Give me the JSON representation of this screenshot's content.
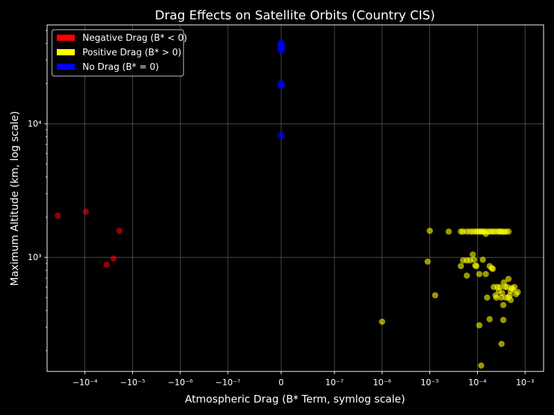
{
  "chart_data": {
    "type": "scatter",
    "title": "Drag Effects on Satellite Orbits (Country CIS)",
    "xlabel": "Atmospheric Drag (B* Term, symlog scale)",
    "ylabel": "Maximum Altitude (km, log scale)",
    "xscale": "symlog",
    "yscale": "log",
    "xlim": [
      -0.0005,
      0.002
    ],
    "ylim": [
      140,
      55000
    ],
    "grid": true,
    "legend_position": "top-left",
    "x_ticks": [
      {
        "value": -0.0001,
        "label": "−10⁻⁴"
      },
      {
        "value": -1e-05,
        "label": "−10⁻⁵"
      },
      {
        "value": -1e-06,
        "label": "−10⁻⁶"
      },
      {
        "value": -1e-07,
        "label": "−10⁻⁷"
      },
      {
        "value": 0,
        "label": "0"
      },
      {
        "value": 1e-07,
        "label": "10⁻⁷"
      },
      {
        "value": 1e-06,
        "label": "10⁻⁶"
      },
      {
        "value": 1e-05,
        "label": "10⁻⁵"
      },
      {
        "value": 0.0001,
        "label": "10⁻⁴"
      },
      {
        "value": 0.001,
        "label": "10⁻³"
      }
    ],
    "y_ticks": [
      {
        "value": 1000,
        "label": "10³"
      },
      {
        "value": 10000,
        "label": "10⁴"
      }
    ],
    "series": [
      {
        "name": "Negative Drag (B* < 0)",
        "color": "#ff0000",
        "points": [
          [
            -0.00037,
            2050
          ],
          [
            -9.5e-05,
            2200
          ],
          [
            -1.9e-05,
            1580
          ],
          [
            -2.5e-05,
            980
          ],
          [
            -3.5e-05,
            880
          ]
        ]
      },
      {
        "name": "Positive Drag (B* > 0)",
        "color": "#ffff00",
        "points": [
          [
            1e-06,
            330
          ],
          [
            9e-06,
            930
          ],
          [
            1e-05,
            1580
          ],
          [
            1.3e-05,
            520
          ],
          [
            2.5e-05,
            1560
          ],
          [
            4.5e-05,
            1560
          ],
          [
            5e-05,
            1560
          ],
          [
            6e-05,
            1560
          ],
          [
            7e-05,
            1560
          ],
          [
            8e-05,
            1560
          ],
          [
            9e-05,
            1560
          ],
          [
            0.0001,
            1560
          ],
          [
            0.00011,
            1560
          ],
          [
            0.00012,
            1560
          ],
          [
            0.00013,
            1560
          ],
          [
            0.00014,
            1560
          ],
          [
            0.00015,
            1500
          ],
          [
            0.00016,
            1560
          ],
          [
            0.00018,
            1560
          ],
          [
            0.0002,
            1560
          ],
          [
            0.00022,
            1560
          ],
          [
            0.00025,
            1560
          ],
          [
            0.00028,
            1560
          ],
          [
            0.0003,
            1560
          ],
          [
            0.00033,
            1560
          ],
          [
            0.00036,
            1550
          ],
          [
            0.0004,
            1560
          ],
          [
            0.00045,
            1560
          ],
          [
            5e-05,
            950
          ],
          [
            6e-05,
            950
          ],
          [
            7e-05,
            950
          ],
          [
            8e-05,
            1050
          ],
          [
            8.5e-05,
            960
          ],
          [
            9e-05,
            870
          ],
          [
            9.5e-05,
            860
          ],
          [
            0.00013,
            960
          ],
          [
            4.5e-05,
            860
          ],
          [
            6e-05,
            730
          ],
          [
            0.00011,
            750
          ],
          [
            0.00015,
            750
          ],
          [
            0.00018,
            860
          ],
          [
            0.0002,
            830
          ],
          [
            0.00021,
            820
          ],
          [
            0.00022,
            600
          ],
          [
            0.00024,
            520
          ],
          [
            0.00026,
            600
          ],
          [
            0.00028,
            560
          ],
          [
            0.0003,
            600
          ],
          [
            0.00033,
            540
          ],
          [
            0.00035,
            440
          ],
          [
            0.00036,
            650
          ],
          [
            0.00038,
            600
          ],
          [
            0.0004,
            500
          ],
          [
            0.00042,
            600
          ],
          [
            0.00045,
            690
          ],
          [
            0.00048,
            520
          ],
          [
            0.0005,
            560
          ],
          [
            0.00052,
            590
          ],
          [
            0.00055,
            580
          ],
          [
            0.0006,
            600
          ],
          [
            0.00065,
            530
          ],
          [
            0.0007,
            550
          ],
          [
            0.00016,
            500
          ],
          [
            0.00025,
            500
          ],
          [
            0.00032,
            500
          ],
          [
            0.0005,
            480
          ],
          [
            0.00045,
            500
          ],
          [
            0.00018,
            345
          ],
          [
            0.00035,
            340
          ],
          [
            0.00011,
            310
          ],
          [
            0.00032,
            225
          ],
          [
            0.00012,
            155
          ]
        ]
      },
      {
        "name": "No Drag (B* = 0)",
        "color": "#0000ff",
        "points": [
          [
            0,
            40000
          ],
          [
            0,
            38500
          ],
          [
            0,
            37000
          ],
          [
            0,
            35500
          ],
          [
            0,
            19800
          ],
          [
            0,
            19500
          ],
          [
            0,
            8200
          ]
        ]
      }
    ]
  }
}
